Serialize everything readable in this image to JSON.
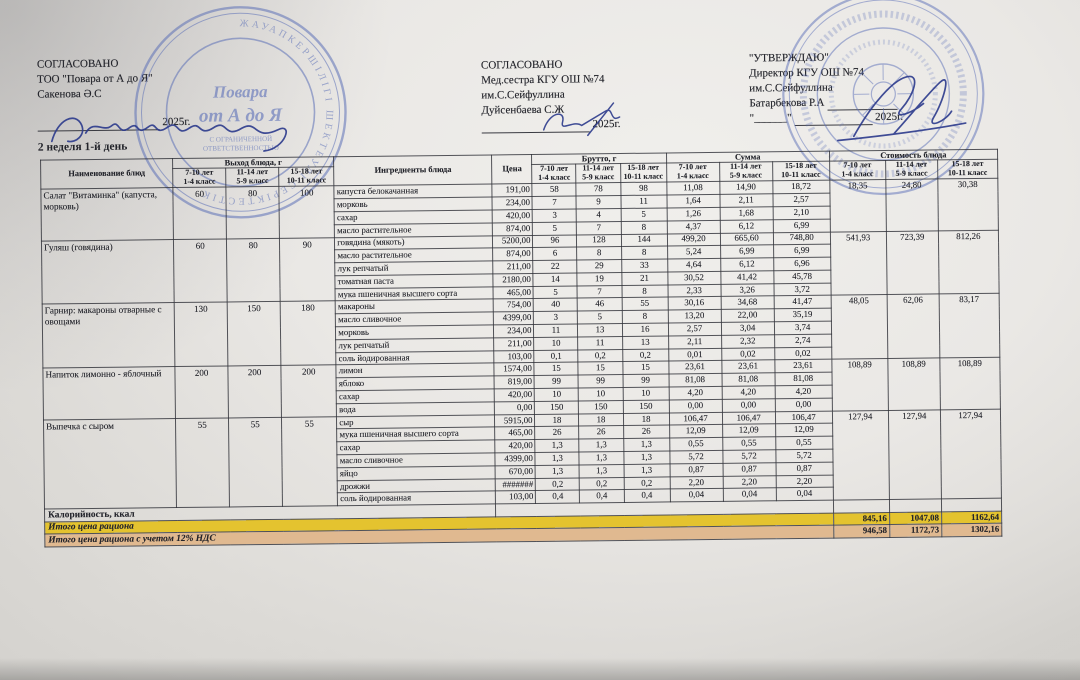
{
  "page": {
    "week_day_label": "2 неделя 1-й день"
  },
  "colors": {
    "footer_yellow": "#e4c32f",
    "footer_tan": "#e0b990",
    "stamp_blue": "#5b6fb7",
    "ink_blue": "#2b3a8c"
  },
  "approvals": {
    "left": {
      "title": "СОГЛАСОВАНО",
      "line1": "ТОО \"Повара от А до Я\"",
      "line2": "Сакенова Ә.С",
      "year": "2025г."
    },
    "middle": {
      "title": "СОГЛАСОВАНО",
      "line1": "Мед.сестра  КГУ ОШ №74",
      "line2": "им.С.Сейфуллина",
      "line3": "Дуйсенбаева С.Ж",
      "year": "2025г."
    },
    "right": {
      "title": "\"УТВЕРЖДАЮ\"",
      "line1": "Директор КГУ ОШ №74",
      "line2": "им.С.Сейфуллина",
      "line3": "Батарбекова Р.А",
      "year": "2025г.",
      "quote_line": "\"______\""
    }
  },
  "stamps": {
    "left": {
      "ring_text": "ЖАУАПКЕРШІЛІГІ ШЕКТЕУЛІ СЕРІКТЕСТІК",
      "center_line1": "Повара",
      "center_line2": "от А до Я",
      "sub_line1": "С ОГРАНИЧЕННОЙ",
      "sub_line2": "ОТВЕТСТВЕННОСТЬЮ"
    },
    "right": {
      "ring_text": ""
    }
  },
  "table": {
    "headers": {
      "name": "Наименование блюд",
      "vyhod": "Выход блюда, г",
      "ingredients": "Ингредиенты блюда",
      "price": "Цена",
      "brutto": "Брутто, г",
      "summa": "Сумма",
      "cost": "Стоимость блюда"
    },
    "age_groups": [
      {
        "age": "7-10 лет",
        "cls": "1-4 класс"
      },
      {
        "age": "11-14 лет",
        "cls": "5-9 класс"
      },
      {
        "age": "15-18 лет",
        "cls": "10-11 класс"
      }
    ],
    "dishes": [
      {
        "name": "Салат \"Витаминка\" (капуста, морковь)",
        "vyhod": [
          "60",
          "80",
          "100"
        ],
        "cost": [
          "18,35",
          "24,80",
          "30,38"
        ],
        "ingredients": [
          {
            "name": "капуста белокачанная",
            "price": "191,00",
            "brutto": [
              "58",
              "78",
              "98"
            ],
            "summa": [
              "11,08",
              "14,90",
              "18,72"
            ]
          },
          {
            "name": "морковь",
            "price": "234,00",
            "brutto": [
              "7",
              "9",
              "11"
            ],
            "summa": [
              "1,64",
              "2,11",
              "2,57"
            ]
          },
          {
            "name": "сахар",
            "price": "420,00",
            "brutto": [
              "3",
              "4",
              "5"
            ],
            "summa": [
              "1,26",
              "1,68",
              "2,10"
            ]
          },
          {
            "name": "масло растительное",
            "price": "874,00",
            "brutto": [
              "5",
              "7",
              "8"
            ],
            "summa": [
              "4,37",
              "6,12",
              "6,99"
            ]
          }
        ]
      },
      {
        "name": "Гуляш (говядина)",
        "vyhod": [
          "60",
          "80",
          "90"
        ],
        "cost": [
          "541,93",
          "723,39",
          "812,26"
        ],
        "ingredients": [
          {
            "name": "говядина (мякоть)",
            "price": "5200,00",
            "brutto": [
              "96",
              "128",
              "144"
            ],
            "summa": [
              "499,20",
              "665,60",
              "748,80"
            ]
          },
          {
            "name": "масло растительное",
            "price": "874,00",
            "brutto": [
              "6",
              "8",
              "8"
            ],
            "summa": [
              "5,24",
              "6,99",
              "6,99"
            ]
          },
          {
            "name": "лук репчатый",
            "price": "211,00",
            "brutto": [
              "22",
              "29",
              "33"
            ],
            "summa": [
              "4,64",
              "6,12",
              "6,96"
            ]
          },
          {
            "name": "томатная паста",
            "price": "2180,00",
            "brutto": [
              "14",
              "19",
              "21"
            ],
            "summa": [
              "30,52",
              "41,42",
              "45,78"
            ]
          },
          {
            "name": "мука пшеничная высшего сорта",
            "price": "465,00",
            "brutto": [
              "5",
              "7",
              "8"
            ],
            "summa": [
              "2,33",
              "3,26",
              "3,72"
            ]
          }
        ]
      },
      {
        "name": "Гарнир: макароны отварные с овощами",
        "vyhod": [
          "130",
          "150",
          "180"
        ],
        "cost": [
          "48,05",
          "62,06",
          "83,17"
        ],
        "ingredients": [
          {
            "name": "макароны",
            "price": "754,00",
            "brutto": [
              "40",
              "46",
              "55"
            ],
            "summa": [
              "30,16",
              "34,68",
              "41,47"
            ]
          },
          {
            "name": "масло сливочное",
            "price": "4399,00",
            "brutto": [
              "3",
              "5",
              "8"
            ],
            "summa": [
              "13,20",
              "22,00",
              "35,19"
            ]
          },
          {
            "name": "морковь",
            "price": "234,00",
            "brutto": [
              "11",
              "13",
              "16"
            ],
            "summa": [
              "2,57",
              "3,04",
              "3,74"
            ]
          },
          {
            "name": "лук репчатый",
            "price": "211,00",
            "brutto": [
              "10",
              "11",
              "13"
            ],
            "summa": [
              "2,11",
              "2,32",
              "2,74"
            ]
          },
          {
            "name": "соль йодированная",
            "price": "103,00",
            "brutto": [
              "0,1",
              "0,2",
              "0,2"
            ],
            "summa": [
              "0,01",
              "0,02",
              "0,02"
            ]
          }
        ]
      },
      {
        "name": "Напиток лимонно - яблочный",
        "vyhod": [
          "200",
          "200",
          "200"
        ],
        "cost": [
          "108,89",
          "108,89",
          "108,89"
        ],
        "ingredients": [
          {
            "name": "лимон",
            "price": "1574,00",
            "brutto": [
              "15",
              "15",
              "15"
            ],
            "summa": [
              "23,61",
              "23,61",
              "23,61"
            ]
          },
          {
            "name": "яблоко",
            "price": "819,00",
            "brutto": [
              "99",
              "99",
              "99"
            ],
            "summa": [
              "81,08",
              "81,08",
              "81,08"
            ]
          },
          {
            "name": "сахар",
            "price": "420,00",
            "brutto": [
              "10",
              "10",
              "10"
            ],
            "summa": [
              "4,20",
              "4,20",
              "4,20"
            ]
          },
          {
            "name": "вода",
            "price": "0,00",
            "brutto": [
              "150",
              "150",
              "150"
            ],
            "summa": [
              "0,00",
              "0,00",
              "0,00"
            ]
          }
        ]
      },
      {
        "name": "Выпечка с сыром",
        "vyhod": [
          "55",
          "55",
          "55"
        ],
        "cost": [
          "127,94",
          "127,94",
          "127,94"
        ],
        "ingredients": [
          {
            "name": "сыр",
            "price": "5915,00",
            "brutto": [
              "18",
              "18",
              "18"
            ],
            "summa": [
              "106,47",
              "106,47",
              "106,47"
            ]
          },
          {
            "name": "мука пшеничная высшего сорта",
            "price": "465,00",
            "brutto": [
              "26",
              "26",
              "26"
            ],
            "summa": [
              "12,09",
              "12,09",
              "12,09"
            ]
          },
          {
            "name": "сахар",
            "price": "420,00",
            "brutto": [
              "1,3",
              "1,3",
              "1,3"
            ],
            "summa": [
              "0,55",
              "0,55",
              "0,55"
            ]
          },
          {
            "name": "масло сливочное",
            "price": "4399,00",
            "brutto": [
              "1,3",
              "1,3",
              "1,3"
            ],
            "summa": [
              "5,72",
              "5,72",
              "5,72"
            ]
          },
          {
            "name": "яйцо",
            "price": "670,00",
            "brutto": [
              "1,3",
              "1,3",
              "1,3"
            ],
            "summa": [
              "0,87",
              "0,87",
              "0,87"
            ]
          },
          {
            "name": "дрожжи",
            "price": "#######",
            "brutto": [
              "0,2",
              "0,2",
              "0,2"
            ],
            "summa": [
              "2,20",
              "2,20",
              "2,20"
            ]
          },
          {
            "name": "соль йодированная",
            "price": "103,00",
            "brutto": [
              "0,4",
              "0,4",
              "0,4"
            ],
            "summa": [
              "0,04",
              "0,04",
              "0,04"
            ]
          }
        ]
      }
    ],
    "footer": [
      {
        "label": "Калорийность, ккал",
        "values": [
          "",
          "",
          ""
        ],
        "style": "plain"
      },
      {
        "label": "Итого цена рациона",
        "values": [
          "845,16",
          "1047,08",
          "1162,64"
        ],
        "style": "yellow"
      },
      {
        "label": "Итого цена рациона с учетом 12% НДС",
        "values": [
          "946,58",
          "1172,73",
          "1302,16"
        ],
        "style": "tan"
      }
    ]
  }
}
